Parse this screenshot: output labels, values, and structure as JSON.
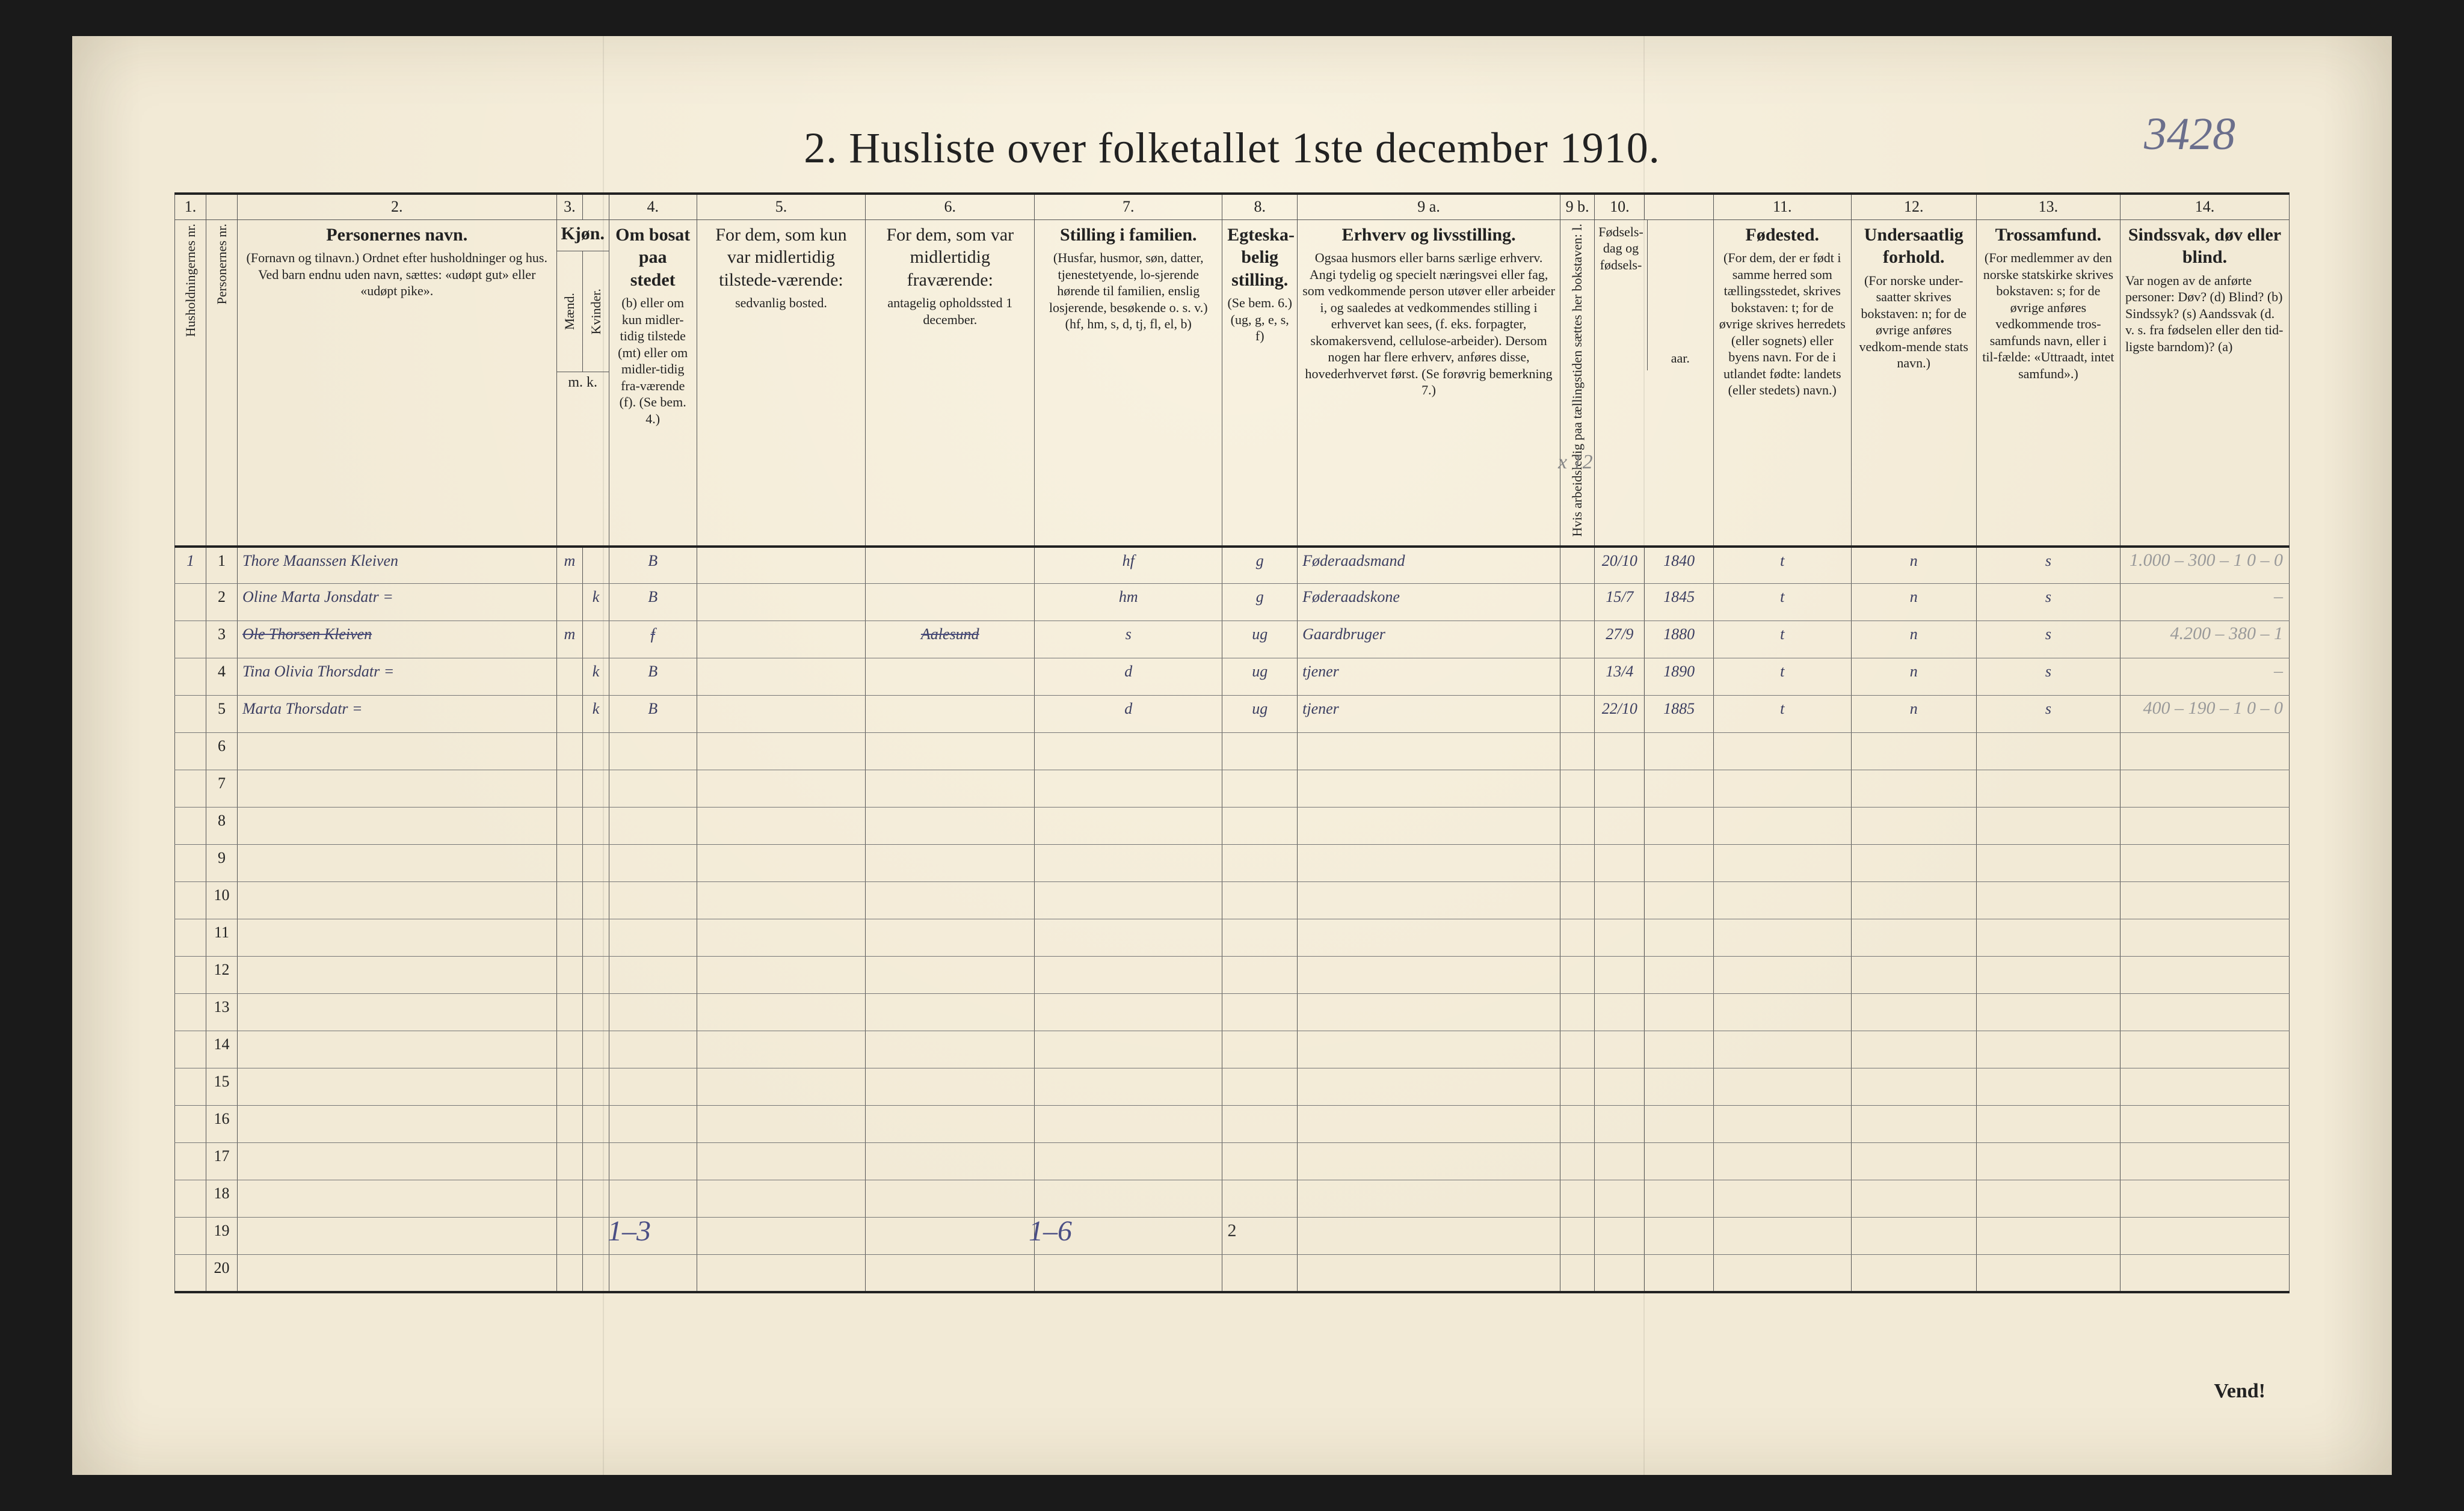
{
  "title": "2.  Husliste over folketallet 1ste december 1910.",
  "corner_note": "3428",
  "page_number": "2",
  "vend": "Vend!",
  "below": {
    "note1": "1–3",
    "note2": "1–6"
  },
  "extra_note": "x 12",
  "colnums": [
    "1.",
    "",
    "2.",
    "3.",
    "",
    "4.",
    "5.",
    "6.",
    "7.",
    "8.",
    "9 a.",
    "9 b.",
    "10.",
    "",
    "11.",
    "12.",
    "13.",
    "14."
  ],
  "headers": {
    "hush": "Husholdningernes nr.",
    "pers": "Personernes nr.",
    "name_t": "Personernes navn.",
    "name_s": "(Fornavn og tilnavn.)\nOrdnet efter husholdninger og hus.\nVed barn endnu uden navn, sættes: «udøpt gut»\neller «udøpt pike».",
    "kjon": "Kjøn.",
    "m": "Mænd.",
    "k": "Kvinder.",
    "mk": "m.  k.",
    "bos_t": "Om bosat paa stedet",
    "bos_s": "(b) eller om kun midler-tidig tilstede (mt) eller om midler-tidig fra-værende (f).\n(Se bem. 4.)",
    "til_t": "For dem, som kun var midlertidig tilstede-værende:",
    "til_s": "sedvanlig bosted.",
    "fra_t": "For dem, som var midlertidig fraværende:",
    "fra_s": "antagelig opholdssted 1 december.",
    "fam_t": "Stilling i familien.",
    "fam_s": "(Husfar, husmor, søn, datter, tjenestetyende, lo-sjerende hørende til familien, enslig losjerende, besøkende o. s. v.)\n(hf, hm, s, d, tj, fl, el, b)",
    "egt_t": "Egteska-belig stilling.",
    "egt_s": "(Se bem. 6.)\n(ug, g, e, s, f)",
    "erv_t": "Erhverv og livsstilling.",
    "erv_s": "Ogsaa husmors eller barns særlige erhverv.  Angi tydelig og specielt næringsvei eller fag, som vedkommende person utøver eller arbeider i, og saaledes at vedkommendes stilling i erhvervet kan sees, (f. eks. forpagter, skomakersvend, cellulose-arbeider).  Dersom nogen har flere erhverv, anføres disse, hovederhvervet først.\n(Se forøvrig bemerkning 7.)",
    "arb": "Hvis arbeidsledig paa tællingstiden sættes her bokstaven: l.",
    "fdag": "Fødsels-dag og fødsels-",
    "faar": "aar.",
    "fst_t": "Fødested.",
    "fst_s": "(For dem, der er født i samme herred som tællingsstedet, skrives bokstaven: t; for de øvrige skrives herredets (eller sognets) eller byens navn.  For de i utlandet fødte: landets (eller stedets) navn.)",
    "und_t": "Undersaatlig forhold.",
    "und_s": "(For norske under-saatter skrives bokstaven: n; for de øvrige anføres vedkom-mende stats navn.)",
    "tro_t": "Trossamfund.",
    "tro_s": "(For medlemmer av den norske statskirke skrives bokstaven: s; for de øvrige anføres vedkommende tros-samfunds navn, eller i til-fælde: «Uttraadt, intet samfund».)",
    "sin_t": "Sindssvak, døv eller blind.",
    "sin_s": "Var nogen av de anførte personer:\nDøv?        (d)\nBlind?      (b)\nSindssyk?  (s)\nAandssvak (d. v. s. fra fødselen eller den tid-ligste barndom)?  (a)"
  },
  "rows": [
    {
      "hh": "1",
      "pn": "1",
      "name": "Thore Maanssen Kleiven",
      "m": "m",
      "k": "",
      "bos": "B",
      "til": "",
      "fra": "",
      "fam": "hf",
      "egt": "g",
      "erv": "Føderaadsmand",
      "dag": "20/10",
      "aar": "1840",
      "fst": "t",
      "und": "n",
      "tro": "s",
      "margin": "1.000 – 300 – 1\n0  –  0",
      "struck": false
    },
    {
      "hh": "",
      "pn": "2",
      "name": "Oline Marta Jonsdatr =",
      "m": "",
      "k": "k",
      "bos": "B",
      "til": "",
      "fra": "",
      "fam": "hm",
      "egt": "g",
      "erv": "Føderaadskone",
      "dag": "15/7",
      "aar": "1845",
      "fst": "t",
      "und": "n",
      "tro": "s",
      "margin": "–",
      "struck": false
    },
    {
      "hh": "",
      "pn": "3",
      "name": "Ole Thorsen Kleiven",
      "m": "m",
      "k": "",
      "bos": "f",
      "til": "",
      "fra": "Aalesund",
      "fam": "s",
      "egt": "ug",
      "erv": "Gaardbruger",
      "dag": "27/9",
      "aar": "1880",
      "fst": "t",
      "und": "n",
      "tro": "s",
      "margin": "4.200 – 380 – 1",
      "struck": true
    },
    {
      "hh": "",
      "pn": "4",
      "name": "Tina Olivia Thorsdatr =",
      "m": "",
      "k": "k",
      "bos": "B",
      "til": "",
      "fra": "",
      "fam": "d",
      "egt": "ug",
      "erv": "tjener",
      "dag": "13/4",
      "aar": "1890",
      "fst": "t",
      "und": "n",
      "tro": "s",
      "margin": "–",
      "struck": false
    },
    {
      "hh": "",
      "pn": "5",
      "name": "Marta Thorsdatr =",
      "m": "",
      "k": "k",
      "bos": "B",
      "til": "",
      "fra": "",
      "fam": "d",
      "egt": "ug",
      "erv": "tjener",
      "dag": "22/10",
      "aar": "1885",
      "fst": "t",
      "und": "n",
      "tro": "s",
      "margin": "400 – 190 – 1\n0 – 0",
      "struck": false
    }
  ],
  "empty_rows": [
    "6",
    "7",
    "8",
    "9",
    "10",
    "11",
    "12",
    "13",
    "14",
    "15",
    "16",
    "17",
    "18",
    "19",
    "20"
  ],
  "style": {
    "page_bg": "#f2ead6",
    "ink": "#222222",
    "rule": "#555555",
    "handwriting": "#3a3d60",
    "pencil": "#9a9a9a"
  }
}
